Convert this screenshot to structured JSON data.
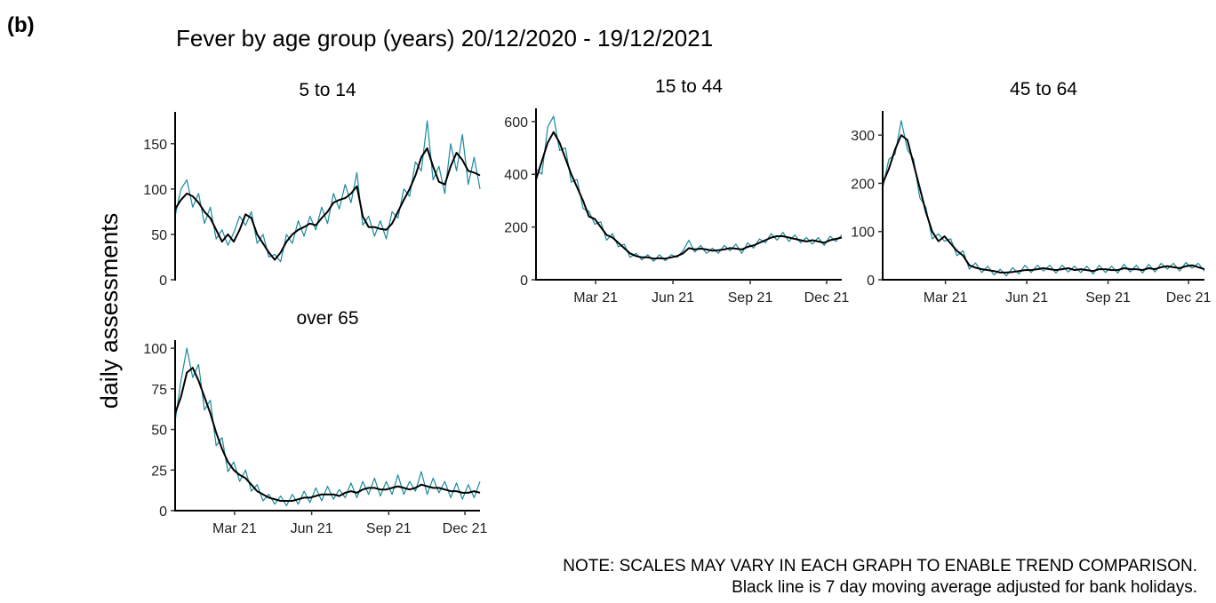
{
  "label": "(b)",
  "title": "Fever by age group (years) 20/12/2020 - 19/12/2021",
  "ylabel": "daily assessments",
  "notes": [
    "NOTE: SCALES MAY VARY IN EACH GRAPH TO ENABLE TREND COMPARISON.",
    "Black line is 7 day moving average adjusted for bank holidays."
  ],
  "chart_data": [
    {
      "type": "line",
      "title": "5 to 14",
      "x": [
        0,
        7,
        14,
        21,
        28,
        35,
        42,
        49,
        56,
        63,
        70,
        77,
        84,
        91,
        98,
        105,
        112,
        119,
        126,
        133,
        140,
        147,
        154,
        161,
        168,
        175,
        182,
        189,
        196,
        203,
        210,
        217,
        224,
        231,
        238,
        245,
        252,
        259,
        266,
        273,
        280,
        287,
        294,
        301,
        308,
        315,
        322,
        329,
        336,
        343,
        350,
        357,
        364
      ],
      "xlim": [
        0,
        364
      ],
      "ylim": [
        0,
        185
      ],
      "yticks": [
        0,
        50,
        100,
        150
      ],
      "series": [
        {
          "color": "#1b8a9b",
          "width": 1.2,
          "values": [
            70,
            100,
            110,
            80,
            95,
            62,
            80,
            45,
            55,
            38,
            52,
            70,
            60,
            75,
            40,
            50,
            25,
            28,
            20,
            50,
            40,
            65,
            48,
            70,
            55,
            80,
            62,
            95,
            78,
            105,
            85,
            118,
            60,
            70,
            48,
            65,
            45,
            75,
            68,
            100,
            92,
            130,
            120,
            175,
            110,
            125,
            95,
            150,
            120,
            160,
            105,
            135,
            100
          ]
        },
        {
          "color": "#000000",
          "width": 2,
          "values": [
            78,
            88,
            95,
            92,
            85,
            75,
            68,
            55,
            42,
            50,
            42,
            55,
            72,
            68,
            50,
            40,
            30,
            22,
            30,
            42,
            50,
            55,
            58,
            62,
            60,
            68,
            75,
            85,
            88,
            90,
            95,
            103,
            70,
            58,
            58,
            56,
            55,
            62,
            75,
            88,
            100,
            115,
            135,
            145,
            125,
            108,
            105,
            125,
            140,
            132,
            120,
            118,
            115
          ]
        }
      ]
    },
    {
      "type": "line",
      "title": "15 to 44",
      "x": [
        0,
        7,
        14,
        21,
        28,
        35,
        42,
        49,
        56,
        63,
        70,
        77,
        84,
        91,
        98,
        105,
        112,
        119,
        126,
        133,
        140,
        147,
        154,
        161,
        168,
        175,
        182,
        189,
        196,
        203,
        210,
        217,
        224,
        231,
        238,
        245,
        252,
        259,
        266,
        273,
        280,
        287,
        294,
        301,
        308,
        315,
        322,
        329,
        336,
        343,
        350,
        357,
        364
      ],
      "xlim": [
        0,
        364
      ],
      "xticks": [
        {
          "value": 71,
          "label": "Mar 21"
        },
        {
          "value": 163,
          "label": "Jun 21"
        },
        {
          "value": 255,
          "label": "Sep 21"
        },
        {
          "value": 346,
          "label": "Dec 21"
        }
      ],
      "ylim": [
        0,
        650
      ],
      "yticks": [
        0,
        200,
        400,
        600
      ],
      "series": [
        {
          "color": "#1b8a9b",
          "width": 1.2,
          "values": [
            420,
            400,
            580,
            620,
            490,
            500,
            370,
            380,
            270,
            260,
            210,
            220,
            150,
            175,
            125,
            135,
            85,
            100,
            75,
            95,
            70,
            95,
            72,
            95,
            85,
            110,
            150,
            105,
            130,
            100,
            120,
            100,
            130,
            110,
            135,
            100,
            140,
            120,
            155,
            140,
            175,
            150,
            180,
            145,
            170,
            140,
            160,
            135,
            160,
            130,
            165,
            145,
            170
          ]
        },
        {
          "color": "#000000",
          "width": 2,
          "values": [
            380,
            450,
            520,
            560,
            520,
            460,
            400,
            350,
            300,
            240,
            230,
            200,
            170,
            160,
            140,
            120,
            100,
            90,
            85,
            85,
            80,
            82,
            80,
            85,
            90,
            100,
            120,
            115,
            118,
            115,
            110,
            112,
            115,
            120,
            118,
            115,
            125,
            130,
            140,
            150,
            160,
            165,
            165,
            160,
            155,
            150,
            145,
            150,
            145,
            140,
            150,
            155,
            160
          ]
        }
      ]
    },
    {
      "type": "line",
      "title": "45 to 64",
      "x": [
        0,
        7,
        14,
        21,
        28,
        35,
        42,
        49,
        56,
        63,
        70,
        77,
        84,
        91,
        98,
        105,
        112,
        119,
        126,
        133,
        140,
        147,
        154,
        161,
        168,
        175,
        182,
        189,
        196,
        203,
        210,
        217,
        224,
        231,
        238,
        245,
        252,
        259,
        266,
        273,
        280,
        287,
        294,
        301,
        308,
        315,
        322,
        329,
        336,
        343,
        350,
        357,
        364
      ],
      "xlim": [
        0,
        364
      ],
      "xticks": [
        {
          "value": 71,
          "label": "Mar 21"
        },
        {
          "value": 163,
          "label": "Jun 21"
        },
        {
          "value": 255,
          "label": "Sep 21"
        },
        {
          "value": 346,
          "label": "Dec 21"
        }
      ],
      "ylim": [
        0,
        350
      ],
      "yticks": [
        0,
        100,
        200,
        300
      ],
      "series": [
        {
          "color": "#1b8a9b",
          "width": 1.2,
          "values": [
            190,
            250,
            260,
            330,
            270,
            250,
            170,
            150,
            85,
            95,
            80,
            85,
            50,
            60,
            22,
            35,
            15,
            28,
            10,
            22,
            8,
            25,
            12,
            30,
            15,
            30,
            18,
            30,
            14,
            30,
            16,
            28,
            15,
            28,
            12,
            30,
            15,
            28,
            14,
            32,
            16,
            30,
            14,
            32,
            16,
            34,
            22,
            34,
            18,
            36,
            24,
            34,
            18
          ]
        },
        {
          "color": "#000000",
          "width": 2,
          "values": [
            200,
            230,
            270,
            300,
            290,
            240,
            190,
            140,
            100,
            80,
            90,
            75,
            60,
            50,
            30,
            25,
            22,
            20,
            18,
            15,
            15,
            16,
            18,
            20,
            20,
            22,
            24,
            22,
            20,
            22,
            24,
            20,
            22,
            20,
            18,
            22,
            22,
            20,
            20,
            24,
            22,
            22,
            20,
            24,
            22,
            26,
            28,
            26,
            24,
            28,
            30,
            26,
            22
          ]
        }
      ]
    },
    {
      "type": "line",
      "title": "over 65",
      "x": [
        0,
        7,
        14,
        21,
        28,
        35,
        42,
        49,
        56,
        63,
        70,
        77,
        84,
        91,
        98,
        105,
        112,
        119,
        126,
        133,
        140,
        147,
        154,
        161,
        168,
        175,
        182,
        189,
        196,
        203,
        210,
        217,
        224,
        231,
        238,
        245,
        252,
        259,
        266,
        273,
        280,
        287,
        294,
        301,
        308,
        315,
        322,
        329,
        336,
        343,
        350,
        357,
        364
      ],
      "xlim": [
        0,
        364
      ],
      "xticks": [
        {
          "value": 71,
          "label": "Mar 21"
        },
        {
          "value": 163,
          "label": "Jun 21"
        },
        {
          "value": 255,
          "label": "Sep 21"
        },
        {
          "value": 346,
          "label": "Dec 21"
        }
      ],
      "ylim": [
        0,
        105
      ],
      "yticks": [
        0,
        25,
        50,
        75,
        100
      ],
      "series": [
        {
          "color": "#1b8a9b",
          "width": 1.2,
          "values": [
            55,
            80,
            100,
            82,
            90,
            62,
            68,
            40,
            45,
            24,
            30,
            18,
            25,
            12,
            16,
            6,
            10,
            4,
            9,
            3,
            10,
            4,
            12,
            5,
            14,
            6,
            15,
            7,
            13,
            8,
            17,
            8,
            18,
            10,
            20,
            9,
            18,
            10,
            22,
            10,
            18,
            12,
            24,
            10,
            20,
            11,
            18,
            8,
            17,
            7,
            16,
            8,
            18
          ]
        },
        {
          "color": "#000000",
          "width": 2,
          "values": [
            60,
            70,
            85,
            88,
            80,
            70,
            60,
            48,
            38,
            30,
            25,
            22,
            20,
            16,
            12,
            10,
            8,
            7,
            6,
            6,
            6,
            7,
            8,
            8,
            9,
            10,
            10,
            10,
            9,
            11,
            12,
            11,
            13,
            14,
            14,
            13,
            13,
            14,
            15,
            14,
            13,
            14,
            16,
            15,
            14,
            14,
            13,
            12,
            12,
            11,
            11,
            12,
            11
          ]
        }
      ]
    }
  ]
}
